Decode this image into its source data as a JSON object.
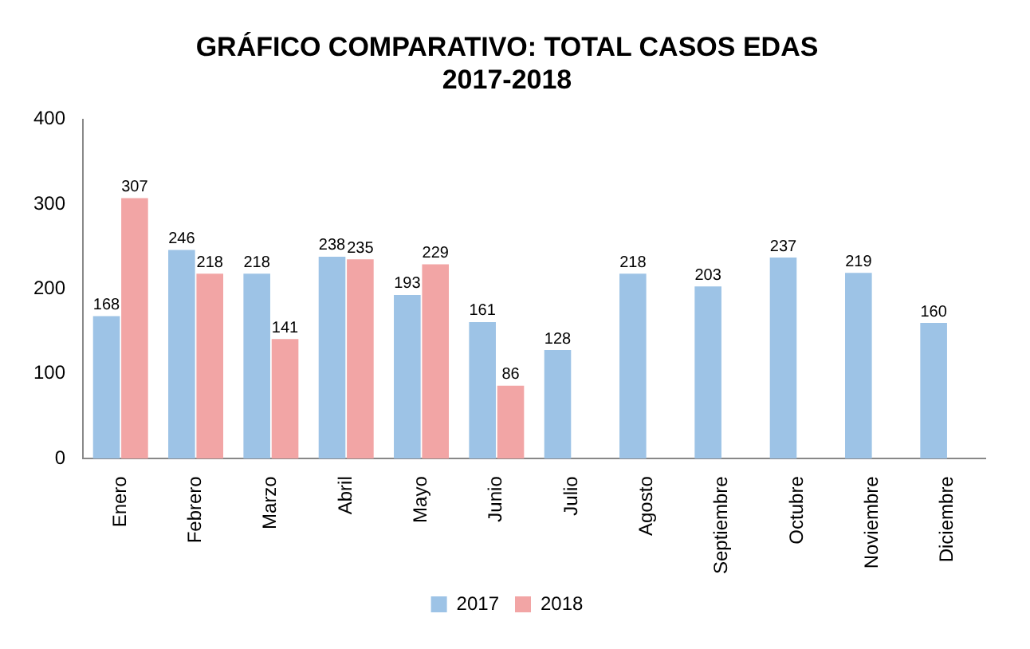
{
  "chart_data": {
    "type": "bar",
    "title": "GRÁFICO COMPARATIVO: TOTAL CASOS EDAS\n2017-2018",
    "categories": [
      "Enero",
      "Febrero",
      "Marzo",
      "Abril",
      "Mayo",
      "Junio",
      "Julio",
      "Agosto",
      "Septiembre",
      "Octubre",
      "Noviembre",
      "Diciembre"
    ],
    "series": [
      {
        "name": "2017",
        "color": "#9dc3e6",
        "values": [
          168,
          246,
          218,
          238,
          193,
          161,
          128,
          218,
          203,
          237,
          219,
          160
        ]
      },
      {
        "name": "2018",
        "color": "#f2a5a5",
        "values": [
          307,
          218,
          141,
          235,
          229,
          86,
          null,
          null,
          null,
          null,
          null,
          null
        ]
      }
    ],
    "ylim": [
      0,
      400
    ],
    "yticks": [
      0,
      100,
      200,
      300,
      400
    ],
    "grid": false,
    "legend": "bottom",
    "data_labels": true
  }
}
